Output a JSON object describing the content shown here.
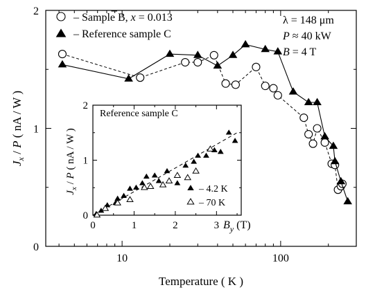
{
  "chart_data": [
    {
      "type": "scatter",
      "xscale": "log",
      "xlabel": "Temperature ( K )",
      "ylabel_parts": [
        "J",
        "x",
        " / ",
        "P",
        "  ( nA / W )"
      ],
      "xlim": [
        3.3,
        300
      ],
      "ylim": [
        0,
        2
      ],
      "xticks": [
        10,
        100
      ],
      "yticks": [
        0,
        1,
        2
      ],
      "legend_placement": "top-left",
      "series": [
        {
          "name": "Sample B, x̄ = 0.013",
          "legend_parts": [
            "–  Sample B, ",
            "x",
            " = 0.013"
          ],
          "marker": "open-circle",
          "line": "dashed",
          "x": [
            4.2,
            13,
            25,
            30,
            38,
            45,
            52,
            70,
            80,
            90,
            96,
            140,
            150,
            160,
            170,
            190,
            210,
            220,
            230,
            240,
            245
          ],
          "y": [
            1.63,
            1.43,
            1.56,
            1.56,
            1.62,
            1.38,
            1.37,
            1.52,
            1.36,
            1.34,
            1.28,
            1.09,
            0.95,
            0.87,
            1.0,
            0.88,
            0.7,
            0.69,
            0.48,
            0.51,
            0.53
          ]
        },
        {
          "name": "Reference sample C",
          "legend_parts": [
            "–  Reference sample C"
          ],
          "marker": "filled-triangle",
          "line": "solid",
          "x": [
            4.2,
            11,
            20,
            30,
            40,
            50,
            60,
            80,
            96,
            120,
            150,
            170,
            190,
            215,
            220,
            240,
            265
          ],
          "y": [
            1.54,
            1.42,
            1.63,
            1.62,
            1.53,
            1.62,
            1.71,
            1.67,
            1.65,
            1.31,
            1.22,
            1.22,
            0.93,
            0.85,
            0.72,
            0.55,
            0.38
          ]
        }
      ],
      "annotations": [
        {
          "text": "λ = 148 μm"
        },
        {
          "parts": [
            "P",
            " ≈ 40 kW"
          ]
        },
        {
          "parts": [
            "B",
            " = 4 T"
          ]
        }
      ]
    },
    {
      "type": "scatter",
      "title": "Reference sample C",
      "xlabel_parts": [
        "B",
        "y",
        "  (T)"
      ],
      "ylabel_parts": [
        "J",
        "x",
        " / ",
        "P",
        "  ( nA / W )"
      ],
      "xlim": [
        0,
        3.6
      ],
      "ylim": [
        0,
        2
      ],
      "xticks": [
        0,
        1,
        2,
        3
      ],
      "yticks": [
        0,
        1,
        2
      ],
      "fit_line": {
        "x": [
          0,
          3.5
        ],
        "y": [
          0,
          1.5
        ]
      },
      "legend_placement": "bottom-right",
      "series": [
        {
          "name": "4.2 K",
          "legend_parts": [
            "–  4.2 K"
          ],
          "marker": "filled-triangle",
          "x": [
            0.08,
            0.2,
            0.35,
            0.55,
            0.6,
            0.75,
            0.9,
            1.05,
            1.2,
            1.3,
            1.5,
            1.6,
            1.8,
            2.05,
            2.25,
            2.45,
            2.55,
            2.75,
            2.95,
            3.1,
            3.3,
            3.45
          ],
          "y": [
            0.02,
            0.08,
            0.18,
            0.22,
            0.3,
            0.35,
            0.48,
            0.5,
            0.58,
            0.7,
            0.72,
            0.62,
            0.8,
            0.58,
            0.9,
            0.97,
            1.08,
            1.08,
            1.18,
            1.15,
            1.5,
            1.35
          ]
        },
        {
          "name": "70 K",
          "legend_parts": [
            "–  70 K"
          ],
          "marker": "open-triangle",
          "x": [
            0.1,
            0.3,
            0.6,
            0.9,
            1.25,
            1.4,
            1.7,
            1.85,
            2.05,
            2.3,
            2.5,
            2.85
          ],
          "y": [
            0.0,
            0.12,
            0.22,
            0.28,
            0.5,
            0.52,
            0.55,
            0.62,
            0.72,
            0.68,
            0.8,
            1.2
          ]
        }
      ]
    }
  ]
}
